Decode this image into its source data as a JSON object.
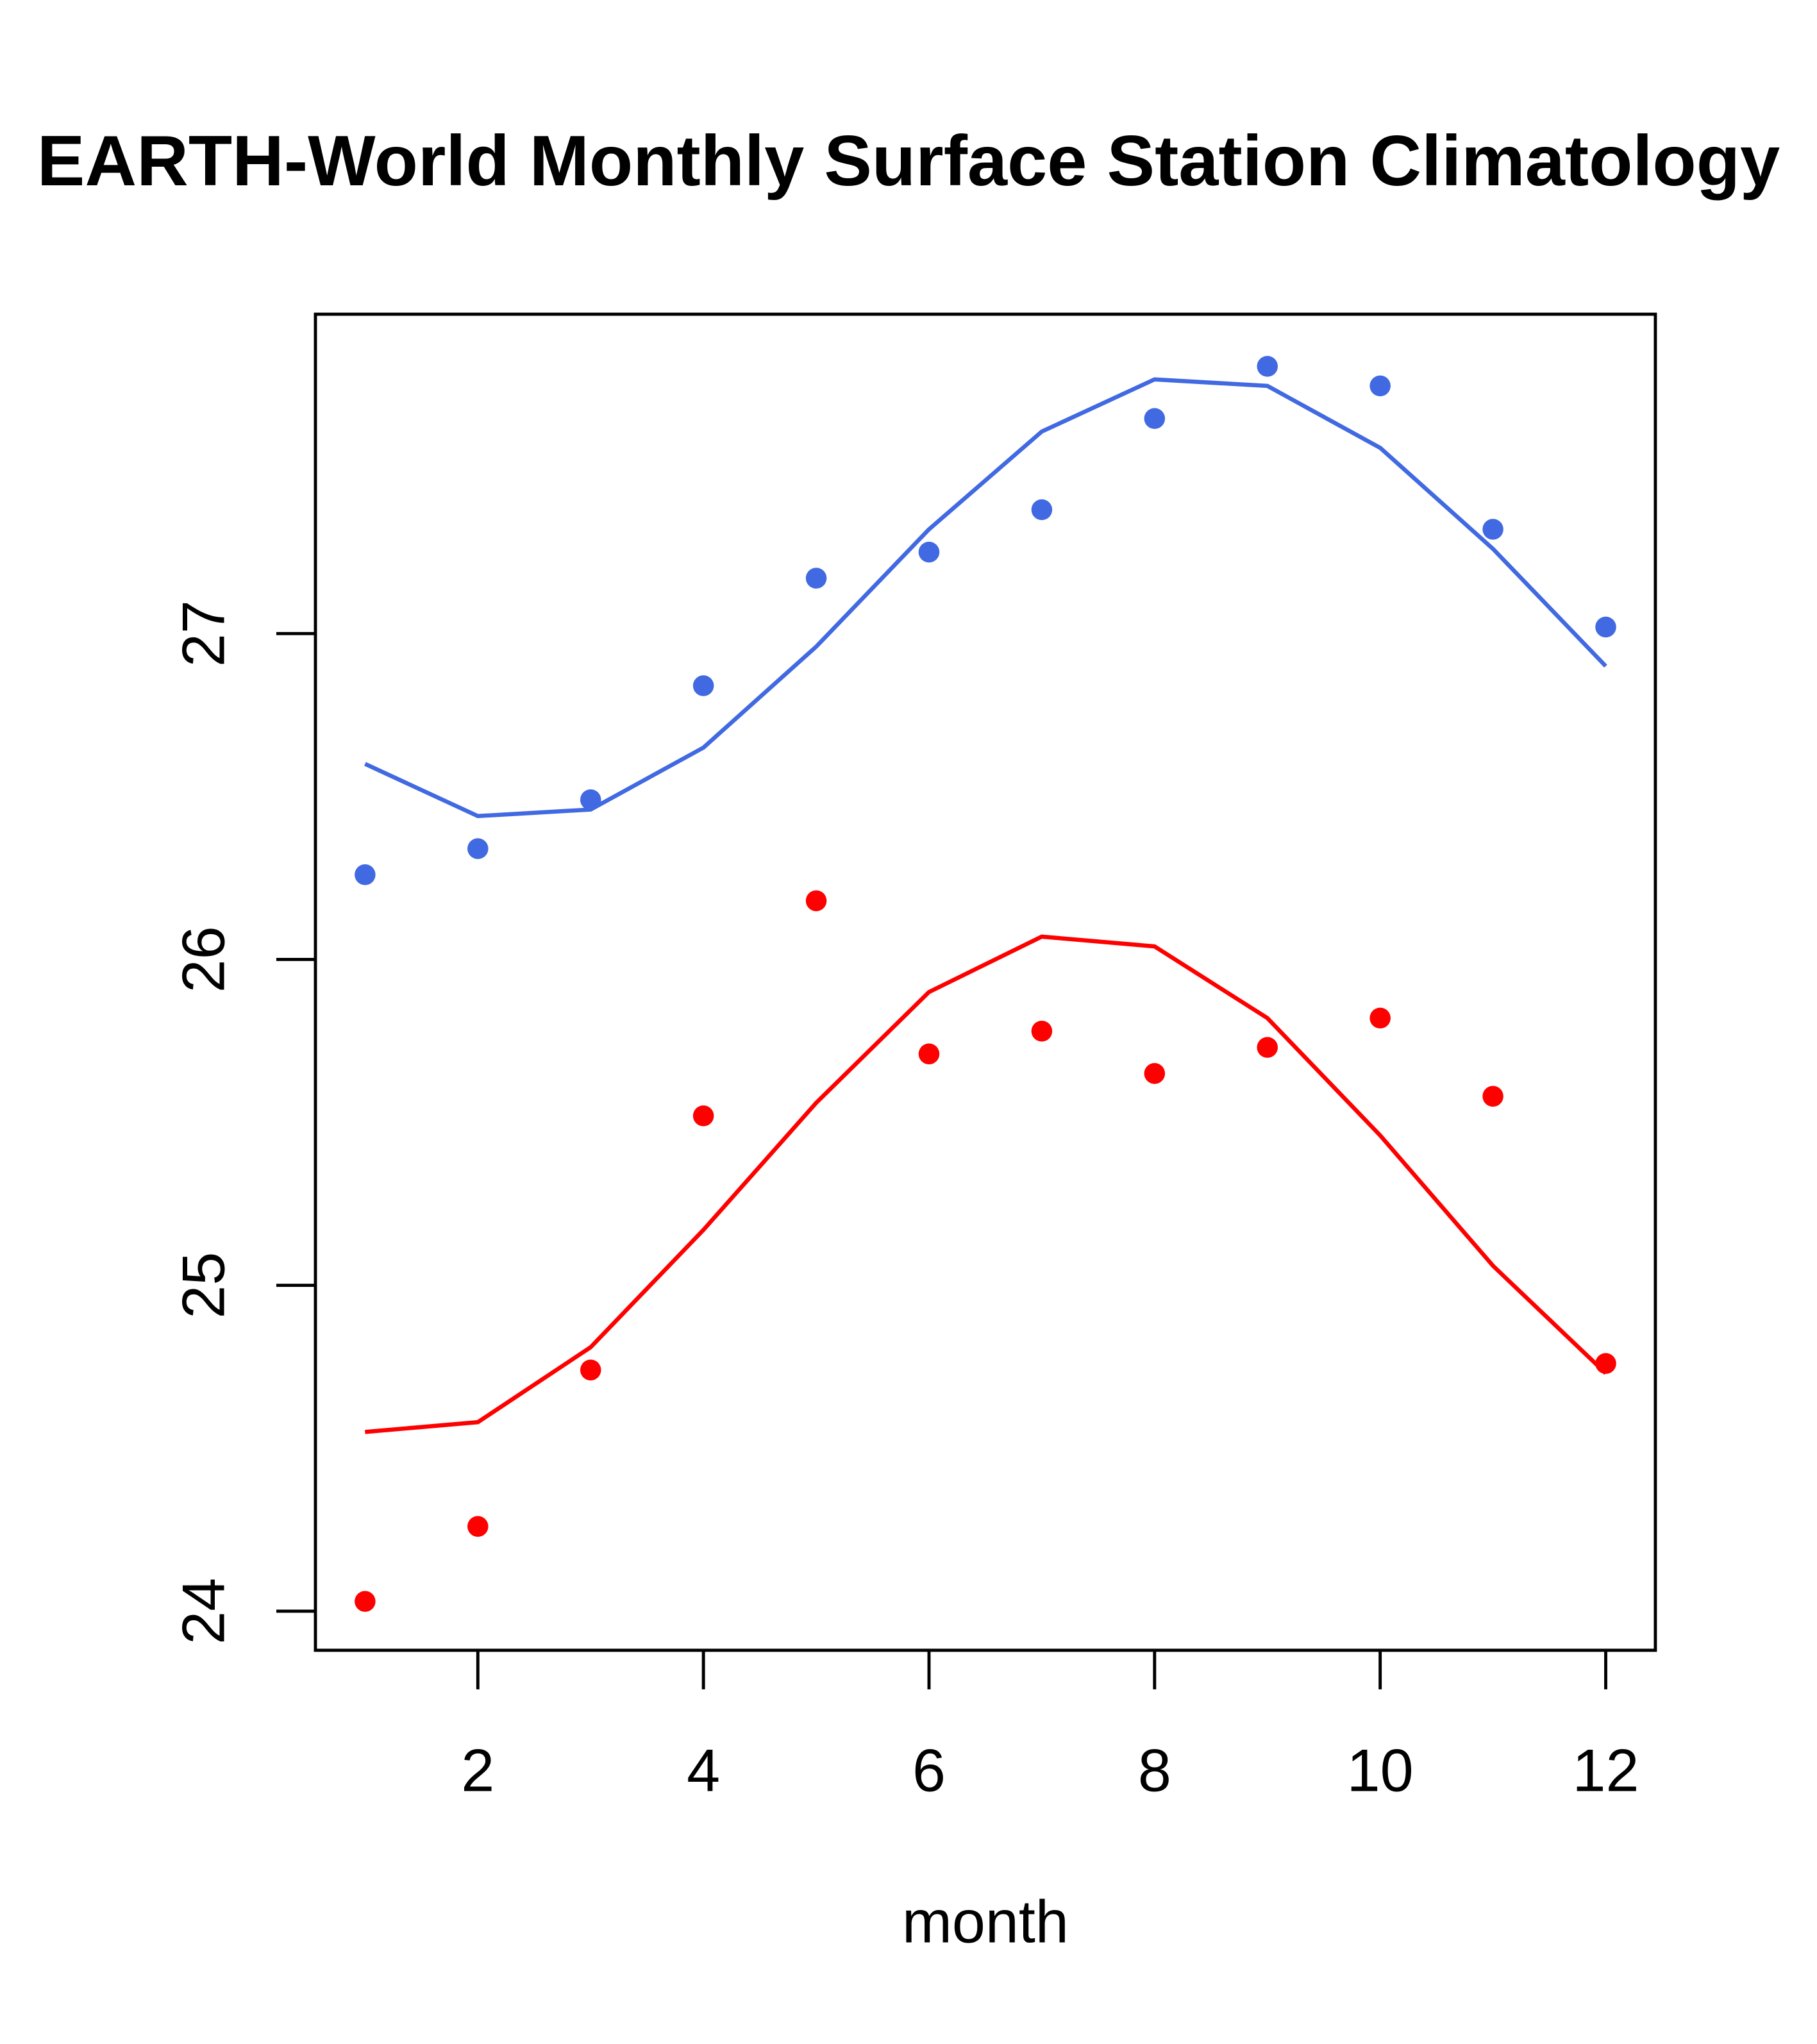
{
  "chart_data": {
    "type": "line",
    "title": "EARTH-World Monthly Surface Station Climatology",
    "xlabel": "month",
    "ylabel": "",
    "xlim": [
      0.56,
      12.44
    ],
    "ylim": [
      23.88,
      27.98
    ],
    "x_ticks": [
      2,
      4,
      6,
      8,
      10,
      12
    ],
    "x_tick_labels": [
      "2",
      "4",
      "6",
      "8",
      "10",
      "12"
    ],
    "y_ticks": [
      24,
      25,
      26,
      27
    ],
    "y_tick_labels": [
      "24",
      "25",
      "26",
      "27"
    ],
    "grid": false,
    "legend": "none",
    "x": [
      1,
      2,
      3,
      4,
      5,
      6,
      7,
      8,
      9,
      10,
      11,
      12
    ],
    "series": [
      {
        "name": "blue-points",
        "kind": "points",
        "color": "#4169E1",
        "values": [
          26.26,
          26.34,
          26.49,
          26.84,
          27.17,
          27.25,
          27.38,
          27.66,
          27.82,
          27.76,
          27.32,
          27.02
        ]
      },
      {
        "name": "blue-line",
        "kind": "line",
        "color": "#4169E1",
        "values": [
          26.6,
          26.44,
          26.46,
          26.65,
          26.96,
          27.32,
          27.62,
          27.78,
          27.76,
          27.57,
          27.26,
          26.9
        ]
      },
      {
        "name": "red-points",
        "kind": "points",
        "color": "#FF0000",
        "values": [
          24.03,
          24.26,
          24.74,
          25.52,
          26.18,
          25.71,
          25.78,
          25.65,
          25.73,
          25.82,
          25.58,
          24.76
        ]
      },
      {
        "name": "red-line",
        "kind": "line",
        "color": "#FF0000",
        "values": [
          24.55,
          24.58,
          24.81,
          25.17,
          25.56,
          25.9,
          26.07,
          26.04,
          25.82,
          25.46,
          25.06,
          24.73
        ]
      }
    ]
  }
}
